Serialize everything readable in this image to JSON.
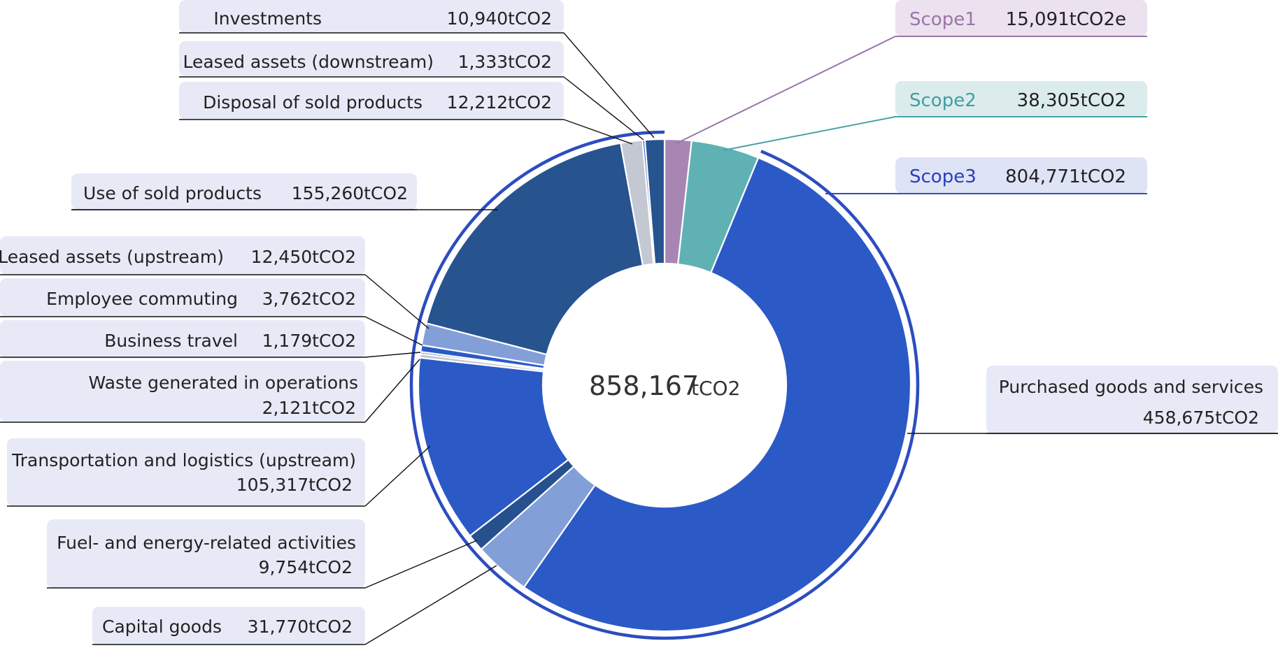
{
  "chart_data": {
    "type": "pie",
    "variant": "donut",
    "total": 858167,
    "total_label": "858,167",
    "unit_label": "tCO2",
    "scopes": [
      {
        "id": "scope1",
        "label": "Scope1",
        "value": 15091,
        "value_label": "15,091tCO2e",
        "color": "#a886b3"
      },
      {
        "id": "scope2",
        "label": "Scope2",
        "value": 38305,
        "value_label": "38,305tCO2",
        "color": "#5fb1b4"
      },
      {
        "id": "scope3",
        "label": "Scope3",
        "value": 804771,
        "value_label": "804,771tCO2",
        "color": "#2c55c2"
      }
    ],
    "slices": [
      {
        "id": "scope1",
        "name": "Scope1",
        "value": 15091,
        "color": "#a886b3"
      },
      {
        "id": "scope2",
        "name": "Scope2",
        "value": 38305,
        "color": "#5fb1b4"
      },
      {
        "id": "purchased-goods",
        "name": "Purchased goods and services",
        "value": 458675,
        "value_label": "458,675tCO2",
        "color": "#2b5ac7"
      },
      {
        "id": "capital-goods",
        "name": "Capital goods",
        "value": 31770,
        "value_label": "31,770tCO2",
        "color": "#839fd8"
      },
      {
        "id": "fuel-energy",
        "name": "Fuel- and energy-related activities",
        "value": 9754,
        "value_label": "9,754tCO2",
        "color": "#27508f"
      },
      {
        "id": "transportation-upstream",
        "name": "Transportation and logistics (upstream)",
        "value": 105317,
        "value_label": "105,317tCO2",
        "color": "#2b5ac7"
      },
      {
        "id": "waste",
        "name": "Waste generated in operations",
        "value": 2121,
        "value_label": "2,121tCO2",
        "color": "#c3c8d2"
      },
      {
        "id": "business-travel",
        "name": "Business travel",
        "value": 1179,
        "value_label": "1,179tCO2",
        "color": "#2b5ac7"
      },
      {
        "id": "employee-commuting",
        "name": "Employee commuting",
        "value": 3762,
        "value_label": "3,762tCO2",
        "color": "#2b5ac7"
      },
      {
        "id": "leased-upstream",
        "name": "Leased assets (upstream)",
        "value": 12450,
        "value_label": "12,450tCO2",
        "color": "#839fd8"
      },
      {
        "id": "use-of-sold",
        "name": "Use of sold products",
        "value": 155260,
        "value_label": "155,260tCO2",
        "color": "#27538f"
      },
      {
        "id": "disposal",
        "name": "Disposal of sold products",
        "value": 12212,
        "value_label": "12,212tCO2",
        "color": "#c3c8d2"
      },
      {
        "id": "leased-downstream",
        "name": "Leased assets (downstream)",
        "value": 1333,
        "value_label": "1,333tCO2",
        "color": "#2b5ac7"
      },
      {
        "id": "investments",
        "name": "Investments",
        "value": 10940,
        "value_label": "10,940tCO2",
        "color": "#27538f"
      }
    ],
    "legend": "callouts"
  }
}
